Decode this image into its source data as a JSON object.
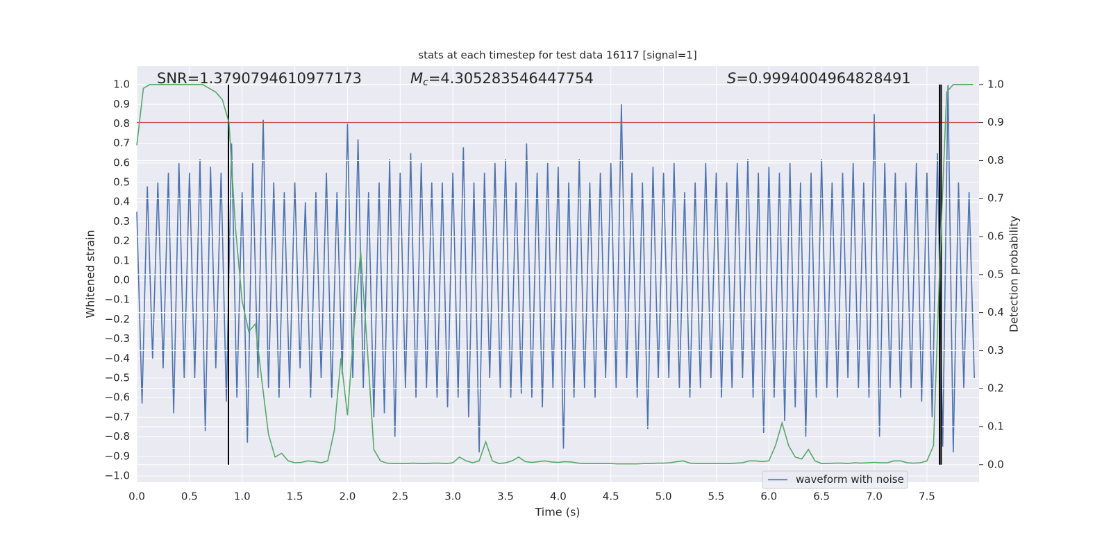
{
  "chart_data": {
    "type": "line",
    "title": "stats at each timestep for test data 16117 [signal=1]",
    "xlabel": "Time (s)",
    "ylabel": "Whitened strain",
    "y2label": "Detection probability",
    "xlim": [
      0,
      7.995
    ],
    "ylim": [
      -1.032,
      1.096
    ],
    "y2lim": [
      -0.046,
      1.049
    ],
    "xticks": [
      {
        "value": 0,
        "label": "0.0"
      },
      0.5,
      {
        "value": 1,
        "label": "1.0"
      },
      1.5,
      {
        "value": 2,
        "label": "2.0"
      },
      2.5,
      {
        "value": 3,
        "label": "3.0"
      },
      3.5,
      {
        "value": 4,
        "label": "4.0"
      },
      4.5,
      {
        "value": 5,
        "label": "5.0"
      },
      5.5,
      {
        "value": 6,
        "label": "6.0"
      },
      6.5,
      {
        "value": 7,
        "label": "7.0"
      },
      7.5
    ],
    "yticks": [
      {
        "value": -1,
        "label": "−1.0"
      },
      {
        "value": -0.9,
        "label": "−0.9"
      },
      {
        "value": -0.8,
        "label": "−0.8"
      },
      {
        "value": -0.7,
        "label": "−0.7"
      },
      {
        "value": -0.6,
        "label": "−0.6"
      },
      {
        "value": -0.5,
        "label": "−0.5"
      },
      {
        "value": -0.4,
        "label": "−0.4"
      },
      {
        "value": -0.3,
        "label": "−0.3"
      },
      {
        "value": -0.2,
        "label": "−0.2"
      },
      {
        "value": -0.1,
        "label": "−0.1"
      },
      {
        "value": 0,
        "label": "0.0"
      },
      0.1,
      0.2,
      0.3,
      0.4,
      0.5,
      0.6,
      0.7,
      0.8,
      0.9,
      {
        "value": 1,
        "label": "1.0"
      }
    ],
    "y2ticks": [
      {
        "value": 0,
        "label": "0.0"
      },
      0.1,
      0.2,
      0.3,
      0.4,
      0.5,
      0.6,
      0.7,
      0.8,
      0.9,
      {
        "value": 1,
        "label": "1.0"
      }
    ],
    "grid": true,
    "background": "#eaeaf2",
    "legend": "lower right",
    "annotations": [
      {
        "text": "SNR=1.3790794610977173"
      },
      {
        "symbol": "M",
        "subscript": "c",
        "text": "=4.305283546447754"
      },
      {
        "symbol": "S",
        "text": "=0.9994004964828491"
      }
    ],
    "hline": {
      "y2": 0.9,
      "color": "#c44e52"
    },
    "vlines": {
      "x": [
        0.87,
        7.62,
        7.635
      ],
      "y2range": [
        0,
        1
      ],
      "color": "#000000"
    },
    "series": [
      {
        "name": "waveform with noise",
        "color": "#4c72b0",
        "x": [
          0,
          0.05,
          0.1,
          0.15,
          0.2,
          0.25,
          0.3,
          0.35,
          0.4,
          0.45,
          0.5,
          0.55,
          0.6,
          0.65,
          0.7,
          0.75,
          0.8,
          0.85,
          0.9,
          0.95,
          1,
          1.05,
          1.1,
          1.15,
          1.2,
          1.25,
          1.3,
          1.35,
          1.4,
          1.45,
          1.5,
          1.55,
          1.6,
          1.65,
          1.7,
          1.75,
          1.8,
          1.85,
          1.9,
          1.95,
          2,
          2.05,
          2.1,
          2.15,
          2.2,
          2.25,
          2.3,
          2.35,
          2.4,
          2.45,
          2.5,
          2.55,
          2.6,
          2.65,
          2.7,
          2.75,
          2.8,
          2.85,
          2.9,
          2.95,
          3,
          3.05,
          3.1,
          3.15,
          3.2,
          3.25,
          3.3,
          3.35,
          3.4,
          3.45,
          3.5,
          3.55,
          3.6,
          3.65,
          3.7,
          3.75,
          3.8,
          3.85,
          3.9,
          3.95,
          4,
          4.05,
          4.1,
          4.15,
          4.2,
          4.25,
          4.3,
          4.35,
          4.4,
          4.45,
          4.5,
          4.55,
          4.6,
          4.65,
          4.7,
          4.75,
          4.8,
          4.85,
          4.9,
          4.95,
          5,
          5.05,
          5.1,
          5.15,
          5.2,
          5.25,
          5.3,
          5.35,
          5.4,
          5.45,
          5.5,
          5.55,
          5.6,
          5.65,
          5.7,
          5.75,
          5.8,
          5.85,
          5.9,
          5.95,
          6,
          6.05,
          6.1,
          6.15,
          6.2,
          6.25,
          6.3,
          6.35,
          6.4,
          6.45,
          6.5,
          6.55,
          6.6,
          6.65,
          6.7,
          6.75,
          6.8,
          6.85,
          6.9,
          6.95,
          7,
          7.05,
          7.1,
          7.15,
          7.2,
          7.25,
          7.3,
          7.35,
          7.4,
          7.45,
          7.5,
          7.55,
          7.6,
          7.65,
          7.7,
          7.75,
          7.8,
          7.85,
          7.9,
          7.95
        ],
        "values": [
          0.35,
          -0.63,
          0.48,
          -0.4,
          0.5,
          -0.45,
          0.55,
          -0.68,
          0.6,
          -0.5,
          0.55,
          -0.5,
          0.62,
          -0.77,
          0.58,
          -0.45,
          0.55,
          -0.62,
          0.7,
          -0.6,
          0.45,
          -0.83,
          0.6,
          -0.5,
          0.82,
          -0.55,
          0.5,
          -0.6,
          0.45,
          -0.55,
          0.5,
          -0.45,
          0.4,
          -0.6,
          0.45,
          -0.5,
          0.55,
          -0.6,
          0.45,
          -0.48,
          0.8,
          -0.5,
          0.72,
          -0.55,
          0.45,
          -0.7,
          0.5,
          -0.68,
          0.62,
          -0.8,
          0.55,
          -0.55,
          0.65,
          -0.6,
          0.6,
          -0.55,
          0.5,
          -0.6,
          0.5,
          -0.65,
          0.55,
          -0.6,
          0.68,
          -0.7,
          0.5,
          -0.88,
          0.55,
          -0.5,
          0.6,
          -0.55,
          0.62,
          -0.6,
          0.5,
          -0.58,
          0.7,
          -0.6,
          0.55,
          -0.65,
          0.6,
          -0.55,
          0.58,
          -0.86,
          0.5,
          -0.6,
          0.62,
          -0.55,
          0.5,
          -0.6,
          0.55,
          -0.5,
          0.6,
          -0.55,
          0.9,
          -0.5,
          0.55,
          -0.6,
          0.5,
          -0.76,
          0.58,
          -0.5,
          0.55,
          -0.5,
          0.6,
          -0.55,
          0.45,
          -0.6,
          0.5,
          -0.55,
          0.6,
          -0.5,
          0.55,
          -0.6,
          0.5,
          -0.55,
          0.6,
          -0.5,
          0.62,
          -0.6,
          0.55,
          -0.78,
          0.58,
          -0.6,
          0.55,
          -0.72,
          0.6,
          -0.65,
          0.5,
          -0.8,
          0.55,
          -0.6,
          0.62,
          -0.55,
          0.5,
          -0.6,
          0.55,
          -0.5,
          0.6,
          -0.55,
          0.5,
          -0.6,
          0.85,
          -0.8,
          0.6,
          -0.55,
          0.55,
          -0.6,
          0.5,
          -0.55,
          0.6,
          -0.62,
          0.55,
          -0.7,
          0.65,
          -0.85,
          1.0,
          -0.88,
          0.5,
          -0.55,
          0.45,
          -0.5
        ]
      },
      {
        "color": "#55a868",
        "axis": "y2",
        "x": [
          0,
          0.0625,
          0.125,
          0.1875,
          0.25,
          0.3125,
          0.375,
          0.4375,
          0.5,
          0.5625,
          0.625,
          0.6875,
          0.75,
          0.8125,
          0.875,
          0.9375,
          1,
          1.0625,
          1.125,
          1.1875,
          1.25,
          1.3125,
          1.375,
          1.4375,
          1.5,
          1.5625,
          1.625,
          1.6875,
          1.75,
          1.8125,
          1.875,
          1.9375,
          2,
          2.0625,
          2.125,
          2.1875,
          2.25,
          2.3125,
          2.375,
          2.4375,
          2.5,
          2.5625,
          2.625,
          2.6875,
          2.75,
          2.8125,
          2.875,
          2.9375,
          3,
          3.0625,
          3.125,
          3.1875,
          3.25,
          3.3125,
          3.375,
          3.4375,
          3.5,
          3.5625,
          3.625,
          3.6875,
          3.75,
          3.8125,
          3.875,
          3.9375,
          4,
          4.0625,
          4.125,
          4.1875,
          4.25,
          4.3125,
          4.375,
          4.4375,
          4.5,
          4.5625,
          4.625,
          4.6875,
          4.75,
          4.8125,
          4.875,
          4.9375,
          5,
          5.0625,
          5.125,
          5.1875,
          5.25,
          5.3125,
          5.375,
          5.4375,
          5.5,
          5.5625,
          5.625,
          5.6875,
          5.75,
          5.8125,
          5.875,
          5.9375,
          6,
          6.0625,
          6.125,
          6.1875,
          6.25,
          6.3125,
          6.375,
          6.4375,
          6.5,
          6.5625,
          6.625,
          6.6875,
          6.75,
          6.8125,
          6.875,
          6.9375,
          7,
          7.0625,
          7.125,
          7.1875,
          7.25,
          7.3125,
          7.375,
          7.4375,
          7.5,
          7.5625,
          7.625,
          7.6875,
          7.75,
          7.8125,
          7.875,
          7.9375
        ],
        "values": [
          0.84,
          0.99,
          1.0,
          1.0,
          1.0,
          1.0,
          1.0,
          1.0,
          1.0,
          1.0,
          1.0,
          0.99,
          0.98,
          0.96,
          0.9,
          0.62,
          0.43,
          0.35,
          0.37,
          0.22,
          0.08,
          0.02,
          0.03,
          0.01,
          0.005,
          0.006,
          0.01,
          0.008,
          0.005,
          0.01,
          0.09,
          0.28,
          0.13,
          0.36,
          0.56,
          0.31,
          0.04,
          0.01,
          0.004,
          0.003,
          0.003,
          0.003,
          0.004,
          0.003,
          0.003,
          0.004,
          0.004,
          0.003,
          0.005,
          0.02,
          0.01,
          0.005,
          0.01,
          0.06,
          0.01,
          0.003,
          0.005,
          0.01,
          0.02,
          0.008,
          0.006,
          0.008,
          0.01,
          0.007,
          0.006,
          0.008,
          0.007,
          0.004,
          0.003,
          0.003,
          0.003,
          0.003,
          0.003,
          0.002,
          0.002,
          0.002,
          0.002,
          0.003,
          0.003,
          0.004,
          0.004,
          0.005,
          0.008,
          0.01,
          0.004,
          0.003,
          0.003,
          0.003,
          0.003,
          0.003,
          0.003,
          0.004,
          0.005,
          0.01,
          0.01,
          0.008,
          0.01,
          0.05,
          0.11,
          0.05,
          0.02,
          0.015,
          0.04,
          0.01,
          0.003,
          0.003,
          0.004,
          0.004,
          0.003,
          0.005,
          0.004,
          0.005,
          0.006,
          0.005,
          0.005,
          0.01,
          0.01,
          0.005,
          0.004,
          0.005,
          0.01,
          0.05,
          0.55,
          0.98,
          1.0,
          1.0,
          1.0,
          1.0
        ]
      }
    ]
  }
}
